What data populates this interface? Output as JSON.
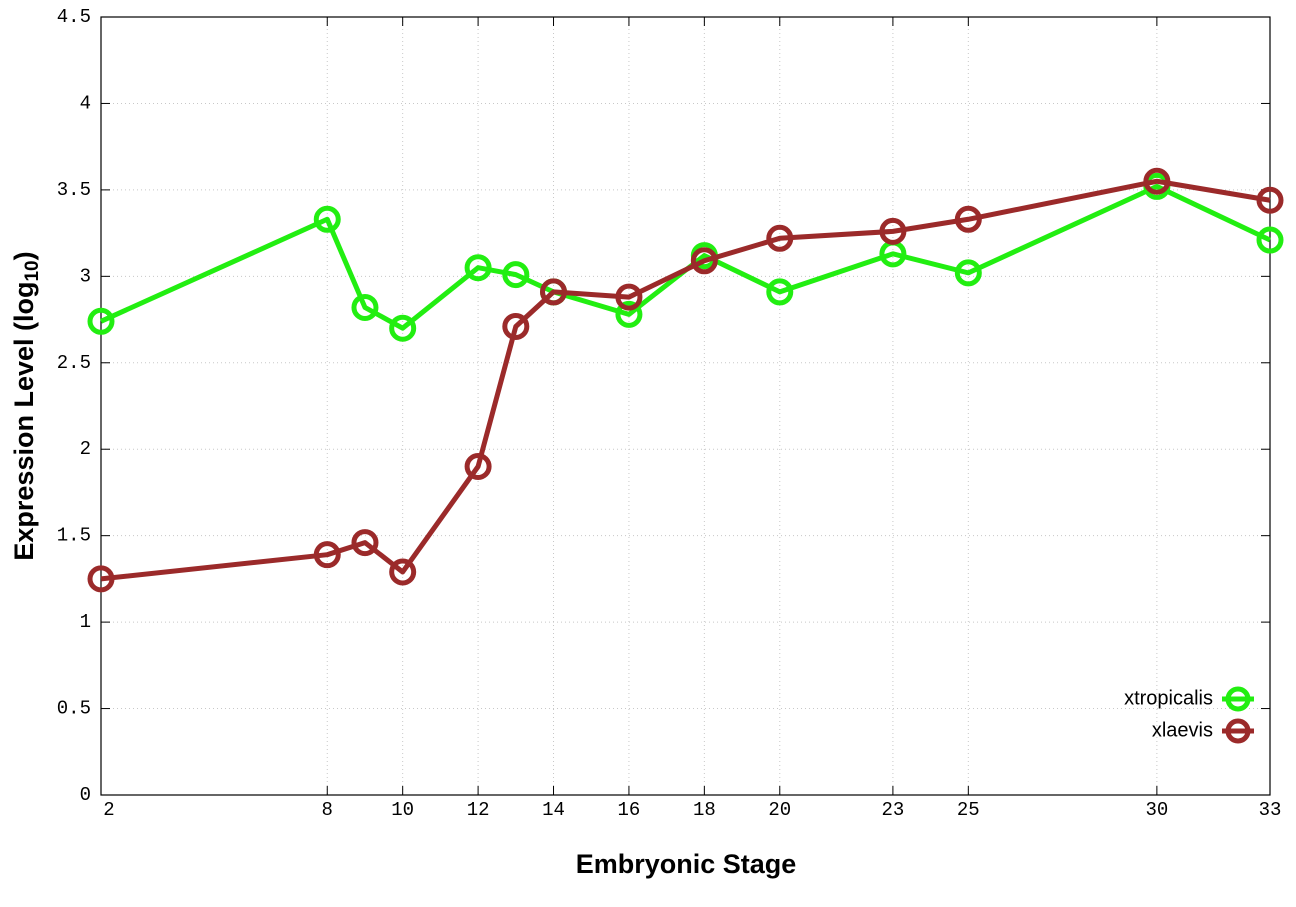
{
  "chart_data": {
    "type": "line",
    "x_label": "Embryonic Stage",
    "y_label": [
      "Expression Level (log",
      "10",
      ")"
    ],
    "x": [
      2,
      8,
      9,
      10,
      12,
      13,
      14,
      16,
      18,
      20,
      23,
      25,
      30,
      33
    ],
    "series": [
      {
        "name": "xtropicalis",
        "color": "#22ee11",
        "values": [
          2.74,
          3.33,
          2.82,
          2.7,
          3.05,
          3.01,
          2.91,
          2.78,
          3.12,
          2.91,
          3.13,
          3.02,
          3.52,
          3.21
        ]
      },
      {
        "name": "xlaevis",
        "color": "#9b2a2a",
        "values": [
          1.25,
          1.39,
          1.46,
          1.29,
          1.9,
          2.71,
          2.91,
          2.88,
          3.09,
          3.22,
          3.26,
          3.33,
          3.55,
          3.44
        ]
      }
    ],
    "xlim": [
      2,
      33
    ],
    "xticks": [
      2,
      8,
      10,
      12,
      14,
      16,
      18,
      20,
      23,
      25,
      30,
      33
    ],
    "ylim": [
      0,
      4.5
    ],
    "yticks": [
      0,
      0.5,
      1,
      1.5,
      2,
      2.5,
      3,
      3.5,
      4,
      4.5
    ],
    "grid": true,
    "legend": "lower right"
  }
}
